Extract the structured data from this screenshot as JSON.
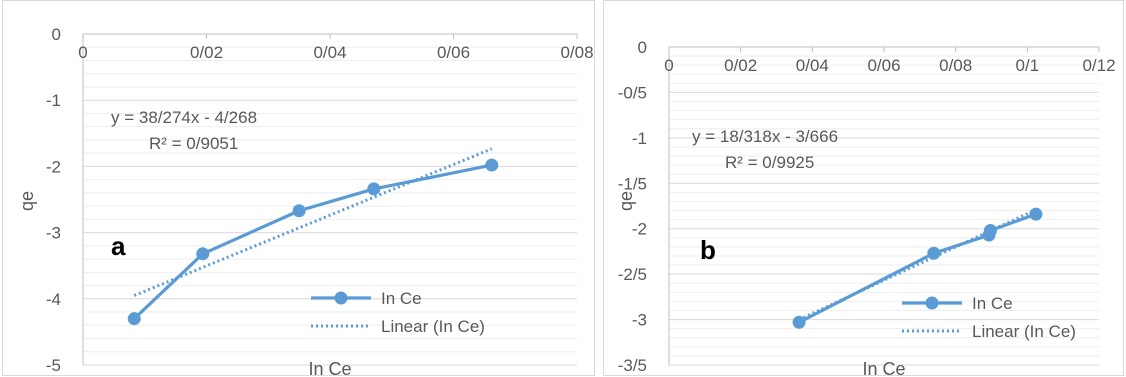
{
  "chart_data": [
    {
      "type": "line",
      "panel_letter": "a",
      "xlabel": "In Ce",
      "ylabel": "qe",
      "xlim": [
        0,
        0.08
      ],
      "ylim": [
        -5,
        0
      ],
      "x_ticks": [
        {
          "value": 0,
          "label": "0"
        },
        {
          "value": 0.02,
          "label": "0/02"
        },
        {
          "value": 0.04,
          "label": "0/04"
        },
        {
          "value": 0.06,
          "label": "0/06"
        },
        {
          "value": 0.08,
          "label": "0/08"
        }
      ],
      "y_ticks": [
        {
          "value": 0,
          "label": "0"
        },
        {
          "value": -1,
          "label": "-1"
        },
        {
          "value": -2,
          "label": "-2"
        },
        {
          "value": -3,
          "label": "-3"
        },
        {
          "value": -4,
          "label": "-4"
        },
        {
          "value": -5,
          "label": "-5"
        }
      ],
      "x_axis_at": 0,
      "grid": "horizontal",
      "series": [
        {
          "name": "In Ce",
          "x": [
            0.0083,
            0.0194,
            0.035,
            0.0471,
            0.0662
          ],
          "y": [
            -4.3,
            -3.32,
            -2.67,
            -2.34,
            -1.98
          ]
        },
        {
          "name": "Linear (In Ce)",
          "trendline": true,
          "slope": 38.274,
          "intercept": -4.268,
          "x_range": [
            0.0083,
            0.0662
          ]
        }
      ],
      "equation": "y = 38/274x - 4/268",
      "r2": "R² = 0/9051",
      "legend": "bottom-right",
      "colors": {
        "series": "#5b9bd5",
        "grid": "#d9d9d9",
        "axis": "#bfbfbf",
        "text": "#595959"
      }
    },
    {
      "type": "line",
      "panel_letter": "b",
      "xlabel": "In Ce",
      "ylabel": "qe",
      "xlim": [
        0,
        0.12
      ],
      "ylim": [
        -3.5,
        0
      ],
      "x_ticks": [
        {
          "value": 0,
          "label": "0"
        },
        {
          "value": 0.02,
          "label": "0/02"
        },
        {
          "value": 0.04,
          "label": "0/04"
        },
        {
          "value": 0.06,
          "label": "0/06"
        },
        {
          "value": 0.08,
          "label": "0/08"
        },
        {
          "value": 0.1,
          "label": "0/1"
        },
        {
          "value": 0.12,
          "label": "0/12"
        }
      ],
      "y_ticks": [
        {
          "value": 0,
          "label": "0"
        },
        {
          "value": -0.5,
          "label": "-0/5"
        },
        {
          "value": -1,
          "label": "-1"
        },
        {
          "value": -1.5,
          "label": "-1/5"
        },
        {
          "value": -2,
          "label": "-2"
        },
        {
          "value": -2.5,
          "label": "-2/5"
        },
        {
          "value": -3,
          "label": "-3"
        },
        {
          "value": -3.5,
          "label": "-3/5"
        }
      ],
      "x_axis_at": 0,
      "grid": "horizontal",
      "series": [
        {
          "name": "In Ce",
          "x": [
            0.0363,
            0.0739,
            0.0893,
            0.0897,
            0.1024
          ],
          "y": [
            -3.03,
            -2.27,
            -2.07,
            -2.02,
            -1.84
          ]
        },
        {
          "name": "Linear (In Ce)",
          "trendline": true,
          "slope": 18.318,
          "intercept": -3.666,
          "x_range": [
            0.0363,
            0.1024
          ]
        }
      ],
      "equation": "y = 18/318x - 3/666",
      "r2": "R² = 0/9925",
      "legend": "bottom-right",
      "colors": {
        "series": "#5b9bd5",
        "grid": "#d9d9d9",
        "axis": "#bfbfbf",
        "text": "#595959"
      }
    }
  ]
}
